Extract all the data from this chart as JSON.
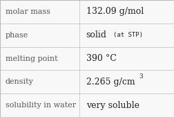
{
  "rows": [
    {
      "label": "molar mass",
      "value": "132.09 g/mol",
      "type": "plain"
    },
    {
      "label": "phase",
      "value": "solid",
      "type": "phase"
    },
    {
      "label": "melting point",
      "value": "390 °C",
      "type": "plain"
    },
    {
      "label": "density",
      "value": "2.265 g/cm",
      "type": "density"
    },
    {
      "label": "solubility in water",
      "value": "very soluble",
      "type": "plain"
    }
  ],
  "bg_color": "#f8f8f8",
  "cell_bg": "#ffffff",
  "border_color": "#bbbbbb",
  "label_color": "#555555",
  "value_color": "#222222",
  "label_font_size": 8.0,
  "value_font_size": 9.0,
  "stp_font_size": 6.5,
  "super_font_size": 6.5,
  "col_split": 0.455
}
